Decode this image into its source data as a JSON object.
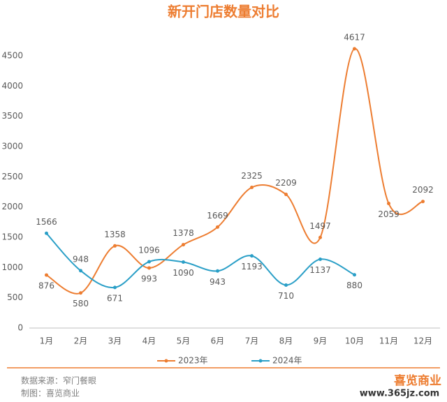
{
  "chart_data": {
    "type": "line",
    "title": "新开门店数量对比",
    "categories": [
      "1月",
      "2月",
      "3月",
      "4月",
      "5月",
      "6月",
      "7月",
      "8月",
      "9月",
      "10月",
      "11月",
      "12月"
    ],
    "series": [
      {
        "name": "2023年",
        "color": "#ed7d31",
        "values": [
          876,
          580,
          1358,
          993,
          1378,
          1669,
          2325,
          2209,
          1497,
          4617,
          2059,
          2092
        ]
      },
      {
        "name": "2024年",
        "color": "#2a9fc7",
        "values": [
          1566,
          948,
          671,
          1096,
          1090,
          943,
          1193,
          710,
          1137,
          880,
          null,
          null
        ]
      }
    ],
    "ylim": [
      0,
      4500
    ],
    "yticks": [
      0,
      500,
      1000,
      1500,
      2000,
      2500,
      3000,
      3500,
      4000,
      4500
    ],
    "grid": false,
    "legend": "bottom",
    "smooth": true,
    "source": "数据来源：窄门餐眼",
    "credit": "制图：喜览商业",
    "logo": "喜览商业",
    "site": "www.365jz.com"
  }
}
